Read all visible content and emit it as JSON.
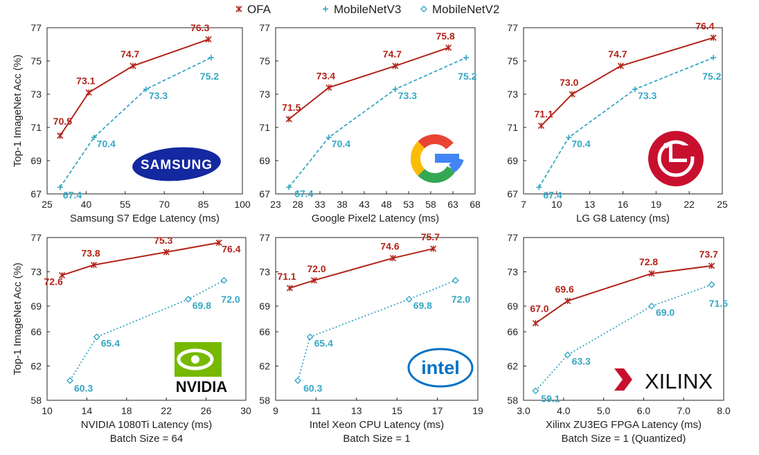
{
  "colors": {
    "ofa": "#b22318",
    "mbv3": "#35a7c4",
    "mbv2": "#35a7c4",
    "logo_red": "#c8102e"
  },
  "legend": [
    {
      "name": "OFA",
      "marker": "x-star"
    },
    {
      "name": "MobileNetV3",
      "marker": "plus"
    },
    {
      "name": "MobileNetV2",
      "marker": "diamond"
    }
  ],
  "chart_data": [
    {
      "type": "line",
      "xlabel": "Samsung S7 Edge Latency (ms)",
      "xlabel2": "",
      "ylabel": "Top-1 ImageNet Acc (%)",
      "xlim": [
        25,
        100
      ],
      "ylim": [
        67,
        77
      ],
      "xticks": [
        25,
        40,
        55,
        70,
        85,
        100
      ],
      "yticks": [
        67,
        69,
        71,
        73,
        75,
        77
      ],
      "logo": "samsung",
      "logo_text": "SAMSUNG",
      "series": [
        {
          "name": "OFA",
          "style": "solid",
          "x": [
            30,
            41,
            58,
            87
          ],
          "y": [
            70.5,
            73.1,
            74.7,
            76.3
          ],
          "labels": [
            "70.5",
            "73.1",
            "74.7",
            "76.3"
          ]
        },
        {
          "name": "MobileNetV3",
          "style": "dashed",
          "x": [
            30,
            43,
            63,
            88
          ],
          "y": [
            67.4,
            70.4,
            73.3,
            75.2
          ],
          "labels": [
            "67.4",
            "70.4",
            "73.3",
            "75.2"
          ]
        }
      ]
    },
    {
      "type": "line",
      "xlabel": "Google Pixel2 Latency (ms)",
      "xlabel2": "",
      "ylabel": "",
      "xlim": [
        23,
        68
      ],
      "ylim": [
        67,
        77
      ],
      "xticks": [
        23,
        28,
        33,
        38,
        43,
        48,
        53,
        58,
        63,
        68
      ],
      "yticks": [
        67,
        69,
        71,
        73,
        75,
        77
      ],
      "logo": "google",
      "logo_text": "",
      "series": [
        {
          "name": "OFA",
          "style": "solid",
          "x": [
            26,
            35,
            50,
            62
          ],
          "y": [
            71.5,
            73.4,
            74.7,
            75.8
          ],
          "labels": [
            "71.5",
            "73.4",
            "74.7",
            "75.8"
          ]
        },
        {
          "name": "MobileNetV3",
          "style": "dashed",
          "x": [
            26,
            35,
            50,
            66
          ],
          "y": [
            67.4,
            70.4,
            73.3,
            75.2
          ],
          "labels": [
            "67.4",
            "70.4",
            "73.3",
            "75.2"
          ]
        }
      ]
    },
    {
      "type": "line",
      "xlabel": "LG G8 Latency (ms)",
      "xlabel2": "",
      "ylabel": "",
      "xlim": [
        7,
        25
      ],
      "ylim": [
        67,
        77
      ],
      "xticks": [
        7,
        10,
        13,
        16,
        19,
        22,
        25
      ],
      "yticks": [
        67,
        69,
        71,
        73,
        75,
        77
      ],
      "logo": "lg",
      "logo_text": "",
      "series": [
        {
          "name": "OFA",
          "style": "solid",
          "x": [
            8.6,
            11.4,
            15.8,
            24.2
          ],
          "y": [
            71.1,
            73.0,
            74.7,
            76.4
          ],
          "labels": [
            "71.1",
            "73.0",
            "74.7",
            "76.4"
          ]
        },
        {
          "name": "MobileNetV3",
          "style": "dashed",
          "x": [
            8.4,
            11.1,
            17.1,
            24.2
          ],
          "y": [
            67.4,
            70.4,
            73.3,
            75.2
          ],
          "labels": [
            "67.4",
            "70.4",
            "73.3",
            "75.2"
          ]
        }
      ]
    },
    {
      "type": "line",
      "xlabel": "NVIDIA 1080Ti Latency (ms)",
      "xlabel2": "Batch Size = 64",
      "ylabel": "Top-1 ImageNet Acc (%)",
      "xlim": [
        10,
        30
      ],
      "ylim": [
        58,
        77
      ],
      "xticks": [
        10,
        14,
        18,
        22,
        26,
        30
      ],
      "yticks": [
        58,
        62,
        66,
        69,
        73,
        77
      ],
      "logo": "nvidia",
      "logo_text": "NVIDIA",
      "series": [
        {
          "name": "OFA",
          "style": "solid",
          "x": [
            11.5,
            14.7,
            22.0,
            27.3
          ],
          "y": [
            72.6,
            73.8,
            75.3,
            76.4
          ],
          "labels": [
            "72.6",
            "73.8",
            "75.3",
            "76.4"
          ]
        },
        {
          "name": "MobileNetV2",
          "style": "dotted",
          "x": [
            12.3,
            15.0,
            24.2,
            27.8
          ],
          "y": [
            60.3,
            65.4,
            69.8,
            72.0
          ],
          "labels": [
            "60.3",
            "65.4",
            "69.8",
            "72.0"
          ]
        }
      ]
    },
    {
      "type": "line",
      "xlabel": "Intel Xeon CPU Latency (ms)",
      "xlabel2": "Batch Size = 1",
      "ylabel": "",
      "xlim": [
        9,
        19
      ],
      "ylim": [
        58,
        77
      ],
      "xticks": [
        9,
        11,
        13,
        15,
        17,
        19
      ],
      "yticks": [
        58,
        62,
        66,
        69,
        73,
        77
      ],
      "logo": "intel",
      "logo_text": "intel",
      "series": [
        {
          "name": "OFA",
          "style": "solid",
          "x": [
            9.7,
            10.9,
            14.8,
            16.8
          ],
          "y": [
            71.1,
            72.0,
            74.6,
            75.7
          ],
          "labels": [
            "71.1",
            "72.0",
            "74.6",
            "75.7"
          ]
        },
        {
          "name": "MobileNetV2",
          "style": "dotted",
          "x": [
            10.1,
            10.7,
            15.6,
            17.9
          ],
          "y": [
            60.3,
            65.4,
            69.8,
            72.0
          ],
          "labels": [
            "60.3",
            "65.4",
            "69.8",
            "72.0"
          ]
        }
      ]
    },
    {
      "type": "line",
      "xlabel": "Xilinx ZU3EG FPGA Latency (ms)",
      "xlabel2": "Batch Size = 1 (Quantized)",
      "ylabel": "",
      "xlim": [
        3.0,
        8.0
      ],
      "ylim": [
        58,
        77
      ],
      "xticks": [
        "3.0",
        "4.0",
        "5.0",
        "6.0",
        "7.0",
        "8.0"
      ],
      "yticks": [
        58,
        62,
        66,
        69,
        73,
        77
      ],
      "logo": "xilinx",
      "logo_text": "XILINX",
      "series": [
        {
          "name": "OFA",
          "style": "solid",
          "x": [
            3.3,
            4.1,
            6.2,
            7.7
          ],
          "y": [
            67.0,
            69.6,
            72.8,
            73.7
          ],
          "labels": [
            "67.0",
            "69.6",
            "72.8",
            "73.7"
          ]
        },
        {
          "name": "MobileNetV2",
          "style": "dotted",
          "x": [
            3.3,
            4.1,
            6.2,
            7.7
          ],
          "y": [
            59.1,
            63.3,
            69.0,
            71.5
          ],
          "labels": [
            "59.1",
            "63.3",
            "69.0",
            "71.5"
          ]
        }
      ]
    }
  ]
}
